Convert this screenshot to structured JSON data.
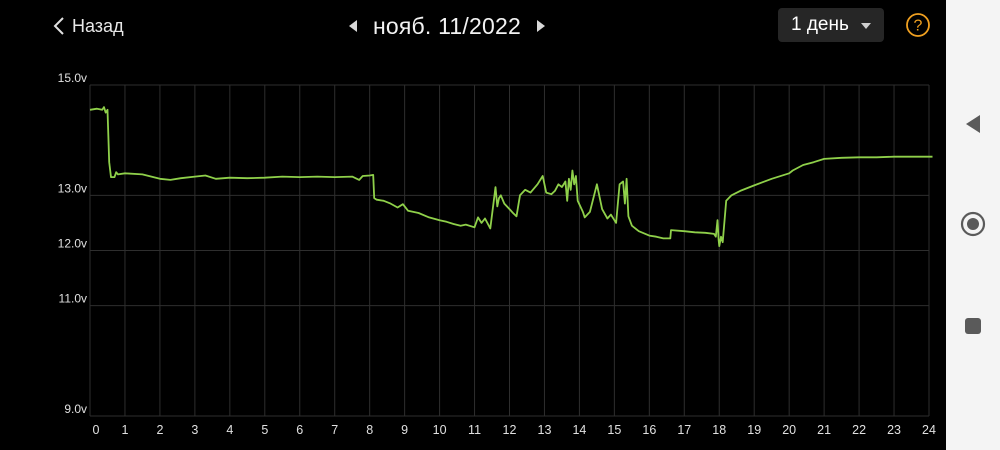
{
  "header": {
    "back_label": "Назад",
    "date_label": "нояб. 11/2022",
    "period_label": "1 день",
    "prev_icon": "chevron-left-icon",
    "next_icon": "chevron-right-icon",
    "help_icon": "question-circle-icon"
  },
  "colors": {
    "background": "#000000",
    "line": "#8fd04a",
    "grid": "#2e2e2e",
    "accent": "#f0a020",
    "dropdown_bg": "#262626"
  },
  "system_nav": {
    "back_icon": "triangle-back-icon",
    "home_icon": "circle-home-icon",
    "recent_icon": "square-recents-icon"
  },
  "chart_data": {
    "type": "line",
    "title": "",
    "xlabel": "",
    "ylabel": "",
    "xlim": [
      0,
      24
    ],
    "ylim": [
      9.0,
      15.0
    ],
    "x_ticks": [
      "0",
      "1",
      "2",
      "3",
      "4",
      "5",
      "6",
      "7",
      "8",
      "9",
      "10",
      "11",
      "12",
      "13",
      "14",
      "15",
      "16",
      "17",
      "18",
      "19",
      "20",
      "21",
      "22",
      "23",
      "24"
    ],
    "y_ticks": [
      {
        "value": 15.0,
        "label": "15.0v"
      },
      {
        "value": 13.0,
        "label": "13.0v"
      },
      {
        "value": 12.0,
        "label": "12.0v"
      },
      {
        "value": 11.0,
        "label": "11.0v"
      },
      {
        "value": 9.0,
        "label": "9.0v"
      }
    ],
    "grid": true,
    "series": [
      {
        "name": "",
        "points": [
          [
            0.0,
            14.55
          ],
          [
            0.2,
            14.57
          ],
          [
            0.35,
            14.55
          ],
          [
            0.4,
            14.6
          ],
          [
            0.45,
            14.5
          ],
          [
            0.5,
            14.55
          ],
          [
            0.55,
            13.6
          ],
          [
            0.6,
            13.33
          ],
          [
            0.7,
            13.33
          ],
          [
            0.75,
            13.42
          ],
          [
            0.8,
            13.38
          ],
          [
            1.0,
            13.4
          ],
          [
            1.5,
            13.38
          ],
          [
            2.0,
            13.3
          ],
          [
            2.3,
            13.28
          ],
          [
            2.6,
            13.31
          ],
          [
            3.0,
            13.34
          ],
          [
            3.3,
            13.36
          ],
          [
            3.6,
            13.3
          ],
          [
            4.0,
            13.32
          ],
          [
            4.5,
            13.31
          ],
          [
            5.0,
            13.32
          ],
          [
            5.5,
            13.34
          ],
          [
            6.0,
            13.33
          ],
          [
            6.5,
            13.34
          ],
          [
            7.0,
            13.33
          ],
          [
            7.5,
            13.34
          ],
          [
            7.7,
            13.28
          ],
          [
            7.8,
            13.35
          ],
          [
            8.0,
            13.36
          ],
          [
            8.1,
            13.37
          ],
          [
            8.13,
            12.95
          ],
          [
            8.2,
            12.92
          ],
          [
            8.4,
            12.9
          ],
          [
            8.6,
            12.85
          ],
          [
            8.8,
            12.78
          ],
          [
            8.95,
            12.84
          ],
          [
            9.1,
            12.72
          ],
          [
            9.4,
            12.68
          ],
          [
            9.7,
            12.6
          ],
          [
            10.0,
            12.55
          ],
          [
            10.2,
            12.52
          ],
          [
            10.4,
            12.48
          ],
          [
            10.6,
            12.45
          ],
          [
            10.75,
            12.47
          ],
          [
            11.0,
            12.42
          ],
          [
            11.1,
            12.6
          ],
          [
            11.2,
            12.5
          ],
          [
            11.3,
            12.58
          ],
          [
            11.45,
            12.4
          ],
          [
            11.55,
            12.9
          ],
          [
            11.6,
            13.15
          ],
          [
            11.65,
            12.8
          ],
          [
            11.7,
            12.95
          ],
          [
            11.75,
            13.0
          ],
          [
            11.85,
            12.85
          ],
          [
            12.0,
            12.75
          ],
          [
            12.1,
            12.68
          ],
          [
            12.2,
            12.62
          ],
          [
            12.3,
            13.0
          ],
          [
            12.45,
            13.1
          ],
          [
            12.6,
            13.05
          ],
          [
            12.8,
            13.2
          ],
          [
            12.95,
            13.35
          ],
          [
            13.05,
            13.05
          ],
          [
            13.2,
            13.02
          ],
          [
            13.3,
            13.08
          ],
          [
            13.4,
            13.2
          ],
          [
            13.5,
            13.15
          ],
          [
            13.6,
            13.25
          ],
          [
            13.65,
            12.9
          ],
          [
            13.7,
            13.3
          ],
          [
            13.75,
            13.1
          ],
          [
            13.8,
            13.45
          ],
          [
            13.85,
            13.2
          ],
          [
            13.9,
            13.35
          ],
          [
            13.95,
            12.9
          ],
          [
            14.1,
            12.7
          ],
          [
            14.15,
            12.6
          ],
          [
            14.3,
            12.7
          ],
          [
            14.5,
            13.2
          ],
          [
            14.65,
            12.75
          ],
          [
            14.8,
            12.58
          ],
          [
            14.9,
            12.65
          ],
          [
            15.0,
            12.55
          ],
          [
            15.05,
            12.5
          ],
          [
            15.15,
            13.2
          ],
          [
            15.25,
            13.25
          ],
          [
            15.3,
            12.85
          ],
          [
            15.35,
            13.3
          ],
          [
            15.4,
            12.62
          ],
          [
            15.5,
            12.45
          ],
          [
            15.7,
            12.35
          ],
          [
            16.0,
            12.27
          ],
          [
            16.2,
            12.25
          ],
          [
            16.4,
            12.22
          ],
          [
            16.6,
            12.22
          ],
          [
            16.62,
            12.37
          ],
          [
            17.0,
            12.35
          ],
          [
            17.3,
            12.33
          ],
          [
            17.6,
            12.32
          ],
          [
            17.85,
            12.3
          ],
          [
            17.9,
            12.25
          ],
          [
            17.95,
            12.55
          ],
          [
            17.98,
            12.2
          ],
          [
            18.0,
            12.08
          ],
          [
            18.05,
            12.25
          ],
          [
            18.1,
            12.15
          ],
          [
            18.12,
            12.3
          ],
          [
            18.2,
            12.9
          ],
          [
            18.35,
            13.0
          ],
          [
            18.6,
            13.08
          ],
          [
            19.0,
            13.18
          ],
          [
            19.5,
            13.3
          ],
          [
            20.0,
            13.4
          ],
          [
            20.1,
            13.45
          ],
          [
            20.4,
            13.55
          ],
          [
            20.7,
            13.6
          ],
          [
            21.0,
            13.66
          ],
          [
            21.5,
            13.68
          ],
          [
            22.0,
            13.69
          ],
          [
            22.5,
            13.69
          ],
          [
            23.0,
            13.7
          ],
          [
            23.5,
            13.7
          ],
          [
            24.1,
            13.7
          ]
        ]
      }
    ]
  }
}
